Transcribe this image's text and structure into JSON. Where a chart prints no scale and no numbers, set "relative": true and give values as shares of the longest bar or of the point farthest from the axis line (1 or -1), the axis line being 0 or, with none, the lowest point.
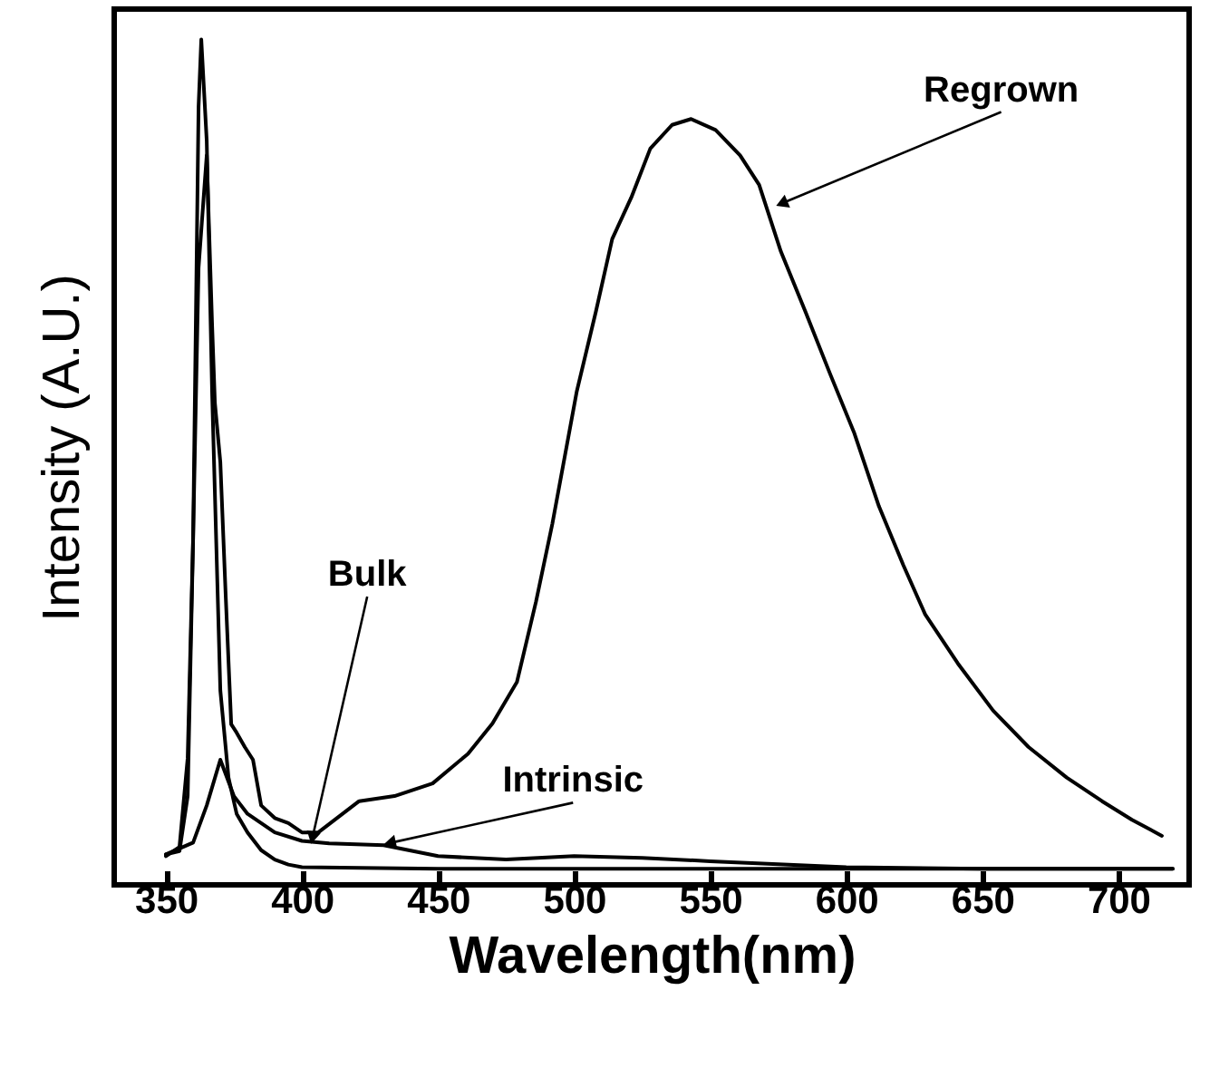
{
  "chart_data": {
    "type": "line",
    "xlabel": "Wavelength(nm)",
    "ylabel": "Intensity (A.U.)",
    "relative": true,
    "xlim": [
      331,
      726
    ],
    "xticks": [
      350,
      400,
      450,
      500,
      550,
      600,
      650,
      700
    ],
    "marker": "none",
    "line_style": "solid",
    "series": [
      {
        "color": "#000000",
        "x": [
          350,
          355,
          358,
          360,
          362,
          363,
          365,
          367,
          370,
          373,
          376,
          380,
          385,
          390,
          395,
          400,
          450,
          500,
          550,
          600,
          650,
          720
        ],
        "values": [
          0.036,
          0.04,
          0.105,
          0.41,
          0.92,
          1.0,
          0.88,
          0.58,
          0.23,
          0.127,
          0.084,
          0.062,
          0.041,
          0.03,
          0.024,
          0.021,
          0.019,
          0.019,
          0.019,
          0.019,
          0.019,
          0.019
        ]
      },
      {
        "color": "#000000",
        "x": [
          350,
          355,
          358,
          360,
          362,
          365,
          367,
          368,
          370,
          372,
          374,
          376,
          379,
          382,
          385,
          390,
          395,
          400,
          406,
          421,
          434,
          448,
          461,
          470,
          479,
          486,
          492,
          501,
          508,
          514,
          521,
          528,
          536,
          543,
          552,
          561,
          568,
          576,
          585,
          594,
          603,
          612,
          621,
          629,
          641,
          654,
          667,
          681,
          694,
          705,
          716
        ],
        "values": [
          0.034,
          0.045,
          0.15,
          0.41,
          0.73,
          0.863,
          0.66,
          0.57,
          0.5,
          0.34,
          0.19,
          0.18,
          0.163,
          0.148,
          0.094,
          0.079,
          0.073,
          0.062,
          0.062,
          0.099,
          0.105,
          0.12,
          0.155,
          0.191,
          0.24,
          0.335,
          0.427,
          0.584,
          0.678,
          0.764,
          0.813,
          0.871,
          0.899,
          0.906,
          0.893,
          0.863,
          0.828,
          0.749,
          0.678,
          0.605,
          0.534,
          0.448,
          0.378,
          0.32,
          0.262,
          0.206,
          0.163,
          0.127,
          0.099,
          0.077,
          0.058
        ]
      },
      {
        "color": "#000000",
        "x": [
          350,
          360,
          365,
          370,
          375,
          380,
          390,
          400,
          410,
          430,
          450,
          475,
          500,
          525,
          550,
          600,
          650,
          720
        ],
        "values": [
          0.036,
          0.05,
          0.094,
          0.148,
          0.105,
          0.084,
          0.062,
          0.052,
          0.049,
          0.047,
          0.034,
          0.03,
          0.034,
          0.032,
          0.028,
          0.021,
          0.019,
          0.019
        ]
      }
    ],
    "annotations": [
      {
        "text": "Regrown",
        "x": 577,
        "y": 0.807
      },
      {
        "text": "Bulk",
        "x": 404,
        "y": 0.058
      },
      {
        "text": "Intrinsic",
        "x": 433,
        "y": 0.05
      }
    ]
  }
}
